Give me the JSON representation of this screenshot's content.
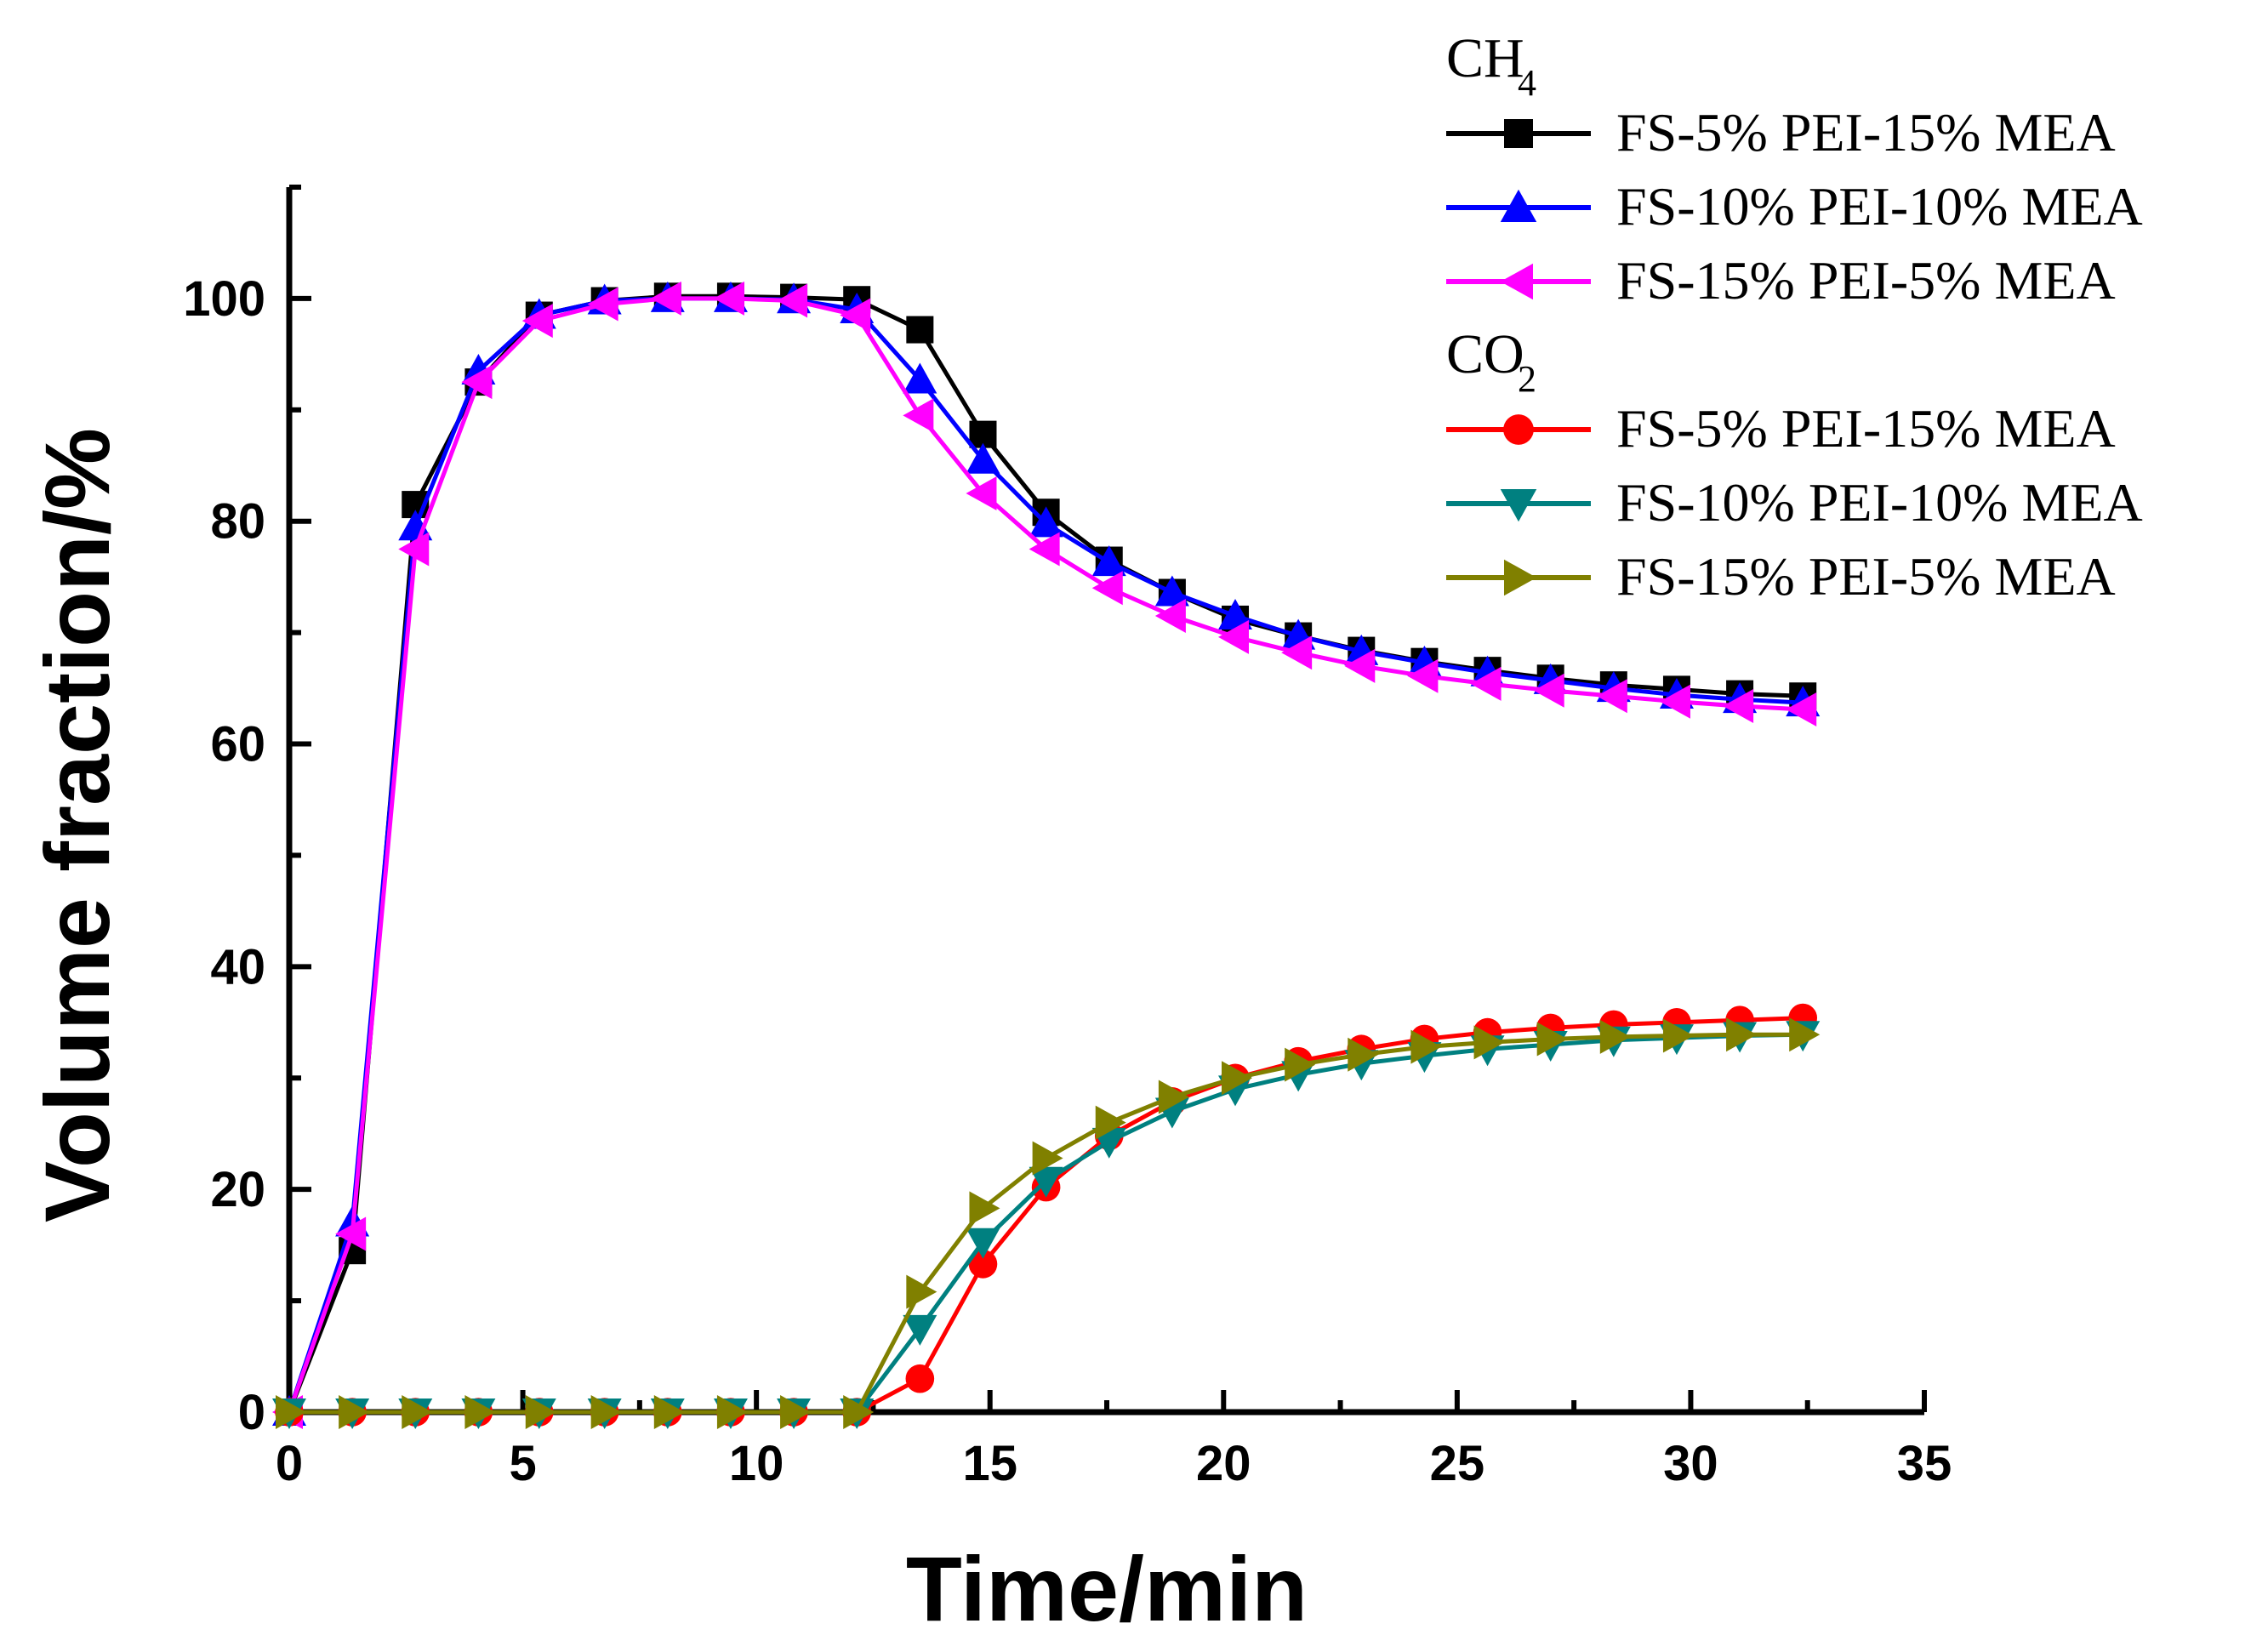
{
  "chart_data": {
    "type": "line",
    "title": "",
    "xlabel": "Time/min",
    "ylabel": "Volume fraction/%",
    "xlim": [
      0,
      35
    ],
    "ylim": [
      0,
      110
    ],
    "xticks": [
      0,
      5,
      10,
      15,
      20,
      25,
      30,
      35
    ],
    "yticks": [
      0,
      20,
      40,
      60,
      80,
      100
    ],
    "x": [
      0,
      1.35,
      2.7,
      4.05,
      5.35,
      6.75,
      8.1,
      9.45,
      10.8,
      12.15,
      13.5,
      14.85,
      16.2,
      17.55,
      18.9,
      20.25,
      21.6,
      22.95,
      24.3,
      25.65,
      27.0,
      28.35,
      29.7,
      31.05,
      32.4
    ],
    "legend_groups": [
      {
        "title": "CH",
        "subscript": "4",
        "series_indices": [
          0,
          1,
          2
        ]
      },
      {
        "title": "CO",
        "subscript": "2",
        "series_indices": [
          3,
          4,
          5
        ]
      }
    ],
    "series": [
      {
        "name": "FS-5% PEI-15% MEA",
        "gas": "CH4",
        "color": "#000000",
        "marker": "square",
        "values": [
          0,
          14.5,
          81.5,
          92.5,
          98.5,
          99.8,
          100.2,
          100.2,
          100.1,
          99.9,
          97.2,
          87.8,
          80.8,
          76.5,
          73.6,
          71.2,
          69.7,
          68.4,
          67.4,
          66.6,
          65.9,
          65.3,
          64.9,
          64.5,
          64.3
        ]
      },
      {
        "name": "FS-10% PEI-10% MEA",
        "gas": "CH4",
        "color": "#0000ff",
        "marker": "triangle-up",
        "values": [
          0,
          17.0,
          79.5,
          93.5,
          98.5,
          99.8,
          100.0,
          100.0,
          99.9,
          99.0,
          92.7,
          85.5,
          79.8,
          76.3,
          73.6,
          71.5,
          69.7,
          68.3,
          67.3,
          66.4,
          65.7,
          65.0,
          64.4,
          64.0,
          63.7
        ]
      },
      {
        "name": "FS-15% PEI-5% MEA",
        "gas": "CH4",
        "color": "#ff00ff",
        "marker": "triangle-left",
        "values": [
          0,
          16.0,
          77.5,
          92.5,
          98.0,
          99.5,
          100.0,
          100.0,
          99.8,
          98.5,
          89.5,
          82.5,
          77.5,
          74.0,
          71.5,
          69.6,
          68.2,
          67.0,
          66.1,
          65.4,
          64.8,
          64.3,
          63.8,
          63.4,
          63.1
        ]
      },
      {
        "name": "FS-5% PEI-15% MEA",
        "gas": "CO2",
        "color": "#ff0000",
        "marker": "circle",
        "values": [
          0,
          0,
          0,
          0,
          0,
          0,
          0,
          0,
          0,
          0,
          3.0,
          13.3,
          20.2,
          24.8,
          27.9,
          30.0,
          31.5,
          32.6,
          33.5,
          34.1,
          34.5,
          34.8,
          35.0,
          35.2,
          35.4
        ]
      },
      {
        "name": "FS-10% PEI-10% MEA",
        "gas": "CO2",
        "color": "#008080",
        "marker": "triangle-down",
        "values": [
          0,
          0,
          0,
          0,
          0,
          0,
          0,
          0,
          0,
          0,
          7.5,
          15.3,
          20.8,
          24.3,
          27.0,
          29.0,
          30.3,
          31.3,
          32.0,
          32.6,
          33.0,
          33.4,
          33.6,
          33.8,
          33.9
        ]
      },
      {
        "name": "FS-15% PEI-5% MEA",
        "gas": "CO2",
        "color": "#808000",
        "marker": "triangle-right",
        "values": [
          0,
          0,
          0,
          0,
          0,
          0,
          0,
          0,
          0,
          0,
          10.8,
          18.3,
          22.8,
          26.0,
          28.3,
          30.0,
          31.2,
          32.1,
          32.8,
          33.2,
          33.5,
          33.7,
          33.8,
          33.9,
          33.9
        ]
      }
    ]
  }
}
